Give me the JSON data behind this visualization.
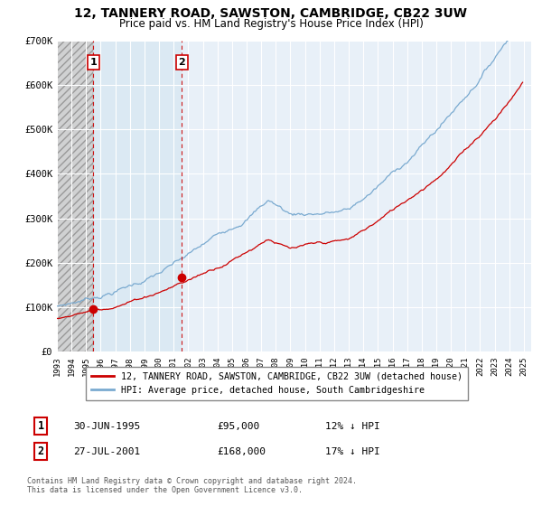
{
  "title": "12, TANNERY ROAD, SAWSTON, CAMBRIDGE, CB22 3UW",
  "subtitle": "Price paid vs. HM Land Registry's House Price Index (HPI)",
  "legend_line1": "12, TANNERY ROAD, SAWSTON, CAMBRIDGE, CB22 3UW (detached house)",
  "legend_line2": "HPI: Average price, detached house, South Cambridgeshire",
  "footer": "Contains HM Land Registry data © Crown copyright and database right 2024.\nThis data is licensed under the Open Government Licence v3.0.",
  "transaction1_date": "30-JUN-1995",
  "transaction1_price": "£95,000",
  "transaction1_hpi": "12% ↓ HPI",
  "transaction2_date": "27-JUL-2001",
  "transaction2_price": "£168,000",
  "transaction2_hpi": "17% ↓ HPI",
  "price_color": "#cc0000",
  "hpi_color": "#7aaad0",
  "background_color": "#ffffff",
  "plot_bg_color": "#e8f0f8",
  "hatch_bg_color": "#cccccc",
  "ylim": [
    0,
    700000
  ],
  "yticks": [
    0,
    100000,
    200000,
    300000,
    400000,
    500000,
    600000,
    700000
  ],
  "ytick_labels": [
    "£0",
    "£100K",
    "£200K",
    "£300K",
    "£400K",
    "£500K",
    "£600K",
    "£700K"
  ],
  "transaction1_x": 1995.49,
  "transaction2_x": 2001.56,
  "transaction1_y": 95000,
  "transaction2_y": 168000,
  "xmin": 1993.0,
  "xmax": 2025.5,
  "xticks": [
    1993,
    1994,
    1995,
    1996,
    1997,
    1998,
    1999,
    2000,
    2001,
    2002,
    2003,
    2004,
    2005,
    2006,
    2007,
    2008,
    2009,
    2010,
    2011,
    2012,
    2013,
    2014,
    2015,
    2016,
    2017,
    2018,
    2019,
    2020,
    2021,
    2022,
    2023,
    2024,
    2025
  ]
}
